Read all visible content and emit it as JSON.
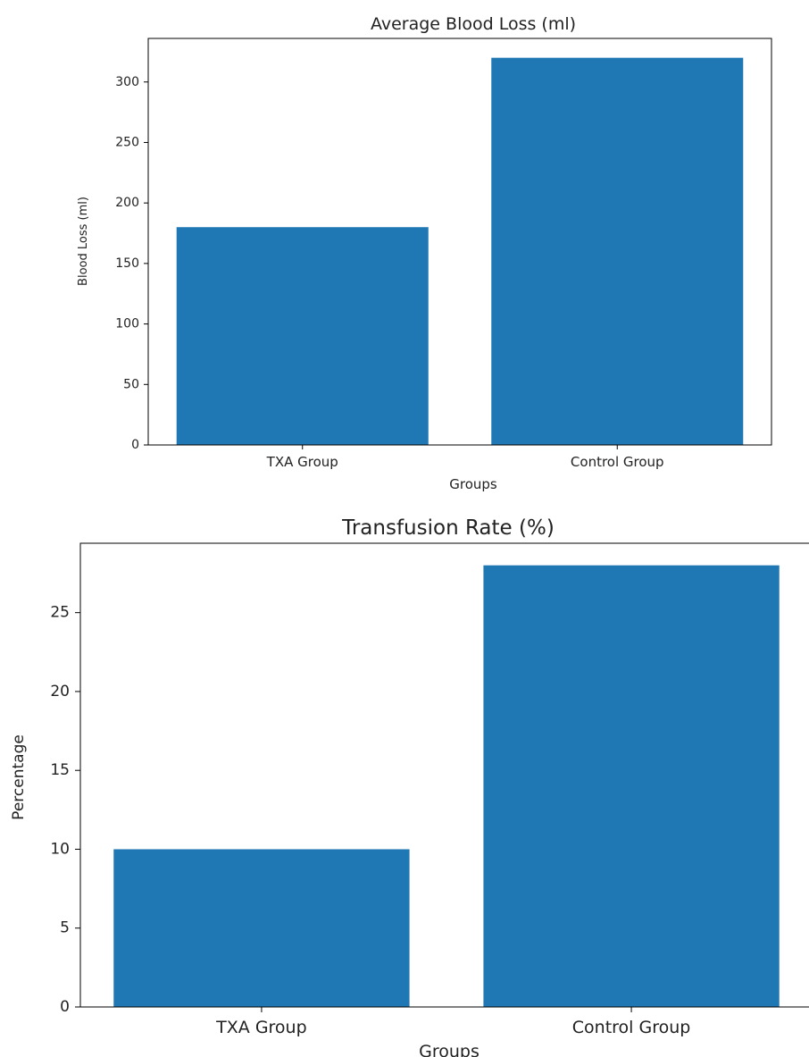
{
  "chart_data": [
    {
      "type": "bar",
      "title": "Average Blood Loss (ml)",
      "xlabel": "Groups",
      "ylabel": "Blood Loss (ml)",
      "categories": [
        "TXA Group",
        "Control Group"
      ],
      "values": [
        180,
        320
      ],
      "ylim": [
        0,
        336
      ],
      "yticks": [
        0,
        50,
        100,
        150,
        200,
        250,
        300
      ],
      "bar_color": "#1f77b4",
      "grid": false
    },
    {
      "type": "bar",
      "title": "Transfusion Rate (%)",
      "xlabel": "Groups",
      "ylabel": "Percentage",
      "categories": [
        "TXA Group",
        "Control Group"
      ],
      "values": [
        10,
        28
      ],
      "ylim": [
        0,
        29.4
      ],
      "yticks": [
        0,
        5,
        10,
        15,
        20,
        25
      ],
      "bar_color": "#1f77b4",
      "grid": false
    }
  ]
}
